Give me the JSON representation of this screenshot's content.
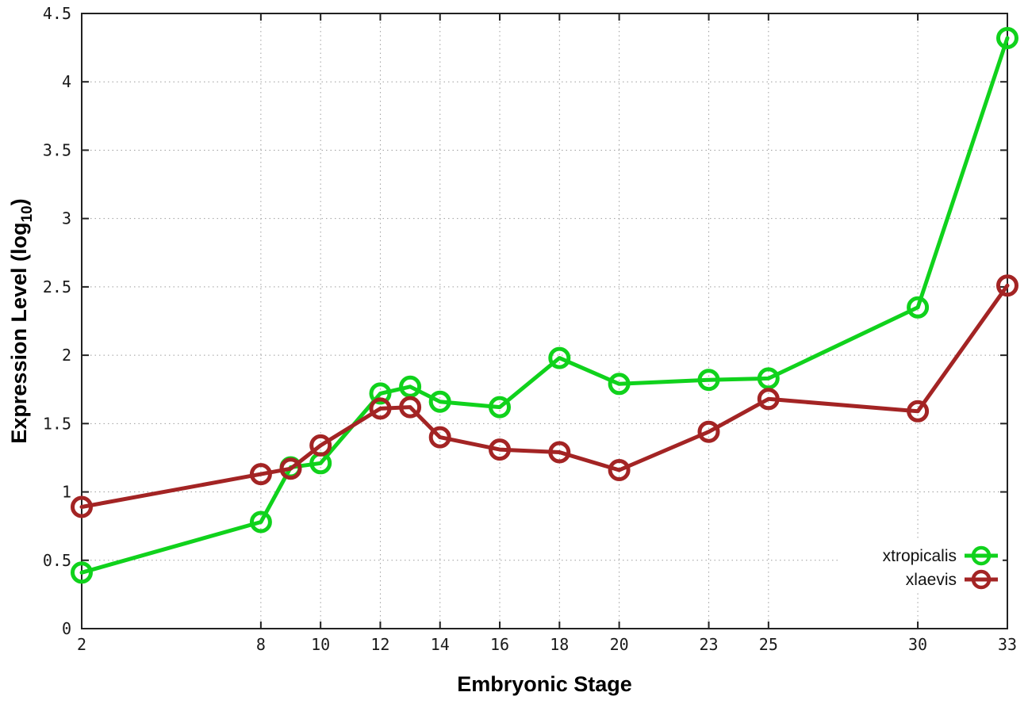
{
  "chart_data": {
    "type": "line",
    "title": "",
    "xlabel": "Embryonic Stage",
    "ylabel": "Expression Level (log10)",
    "ylabel_display": {
      "pre": "Expression Level (log",
      "sub": "10",
      "post": ")"
    },
    "xlim": [
      2,
      33
    ],
    "ylim": [
      0,
      4.5
    ],
    "grid": true,
    "legend_position": "bottom-right",
    "x": [
      2,
      8,
      9,
      10,
      12,
      13,
      14,
      16,
      18,
      20,
      23,
      25,
      30,
      33
    ],
    "xticks": [
      2,
      8,
      10,
      12,
      14,
      16,
      18,
      20,
      23,
      25,
      30,
      33
    ],
    "xtick_labels": [
      "2",
      "8",
      "10",
      "12",
      "14",
      "16",
      "18",
      "20",
      "23",
      "25",
      "30",
      "33"
    ],
    "yticks": [
      0,
      0.5,
      1,
      1.5,
      2,
      2.5,
      3,
      3.5,
      4,
      4.5
    ],
    "ytick_labels": [
      "0",
      "0.5",
      "1",
      "1.5",
      "2",
      "2.5",
      "3",
      "3.5",
      "4",
      "4.5"
    ],
    "series": [
      {
        "name": "xtropicalis",
        "color": "#10d21c",
        "values": [
          0.41,
          0.78,
          1.18,
          1.21,
          1.72,
          1.77,
          1.66,
          1.62,
          1.98,
          1.79,
          1.82,
          1.83,
          2.35,
          4.32
        ]
      },
      {
        "name": "xlaevis",
        "color": "#a32424",
        "values": [
          0.89,
          1.13,
          1.17,
          1.34,
          1.61,
          1.62,
          1.4,
          1.31,
          1.29,
          1.16,
          1.44,
          1.68,
          1.59,
          2.51
        ]
      }
    ],
    "colors": {
      "background": "#ffffff",
      "border": "#222222",
      "gridline": "#9e9e9e",
      "text": "#1a1a1a"
    }
  }
}
